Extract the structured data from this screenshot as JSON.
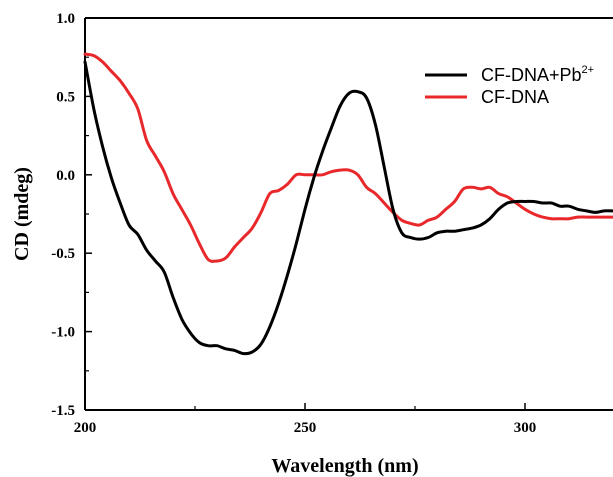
{
  "chart_data": {
    "type": "line",
    "title": "",
    "xlabel": "Wavelength (nm)",
    "ylabel": "CD (mdeg)",
    "xlim": [
      200,
      320
    ],
    "ylim": [
      -1.5,
      1.0
    ],
    "xticks": [
      200,
      250,
      300
    ],
    "xtick_labels": [
      "200",
      "250",
      "300"
    ],
    "yticks": [
      1.0,
      0.5,
      0.0,
      -0.5,
      -1.0,
      -1.5
    ],
    "ytick_labels": [
      "1.0",
      "0.5",
      "0.0",
      "-0.5",
      "-1.0",
      "-1.5"
    ],
    "grid": false,
    "legend_position": "top-right",
    "series": [
      {
        "name": "CF-DNA+Pb2+",
        "legend_base": "CF-DNA+Pb",
        "legend_sup": "2+",
        "color": "#000000",
        "x": [
          200,
          202,
          204,
          206,
          208,
          210,
          212,
          214,
          216,
          218,
          220,
          222,
          224,
          226,
          228,
          230,
          232,
          234,
          236,
          238,
          240,
          242,
          244,
          246,
          248,
          250,
          252,
          254,
          256,
          258,
          260,
          262,
          264,
          266,
          268,
          270,
          272,
          274,
          276,
          278,
          280,
          282,
          284,
          286,
          288,
          290,
          292,
          294,
          296,
          298,
          300,
          302,
          304,
          306,
          308,
          310,
          312,
          314,
          316,
          318,
          320
        ],
        "y": [
          0.72,
          0.42,
          0.18,
          -0.02,
          -0.18,
          -0.32,
          -0.38,
          -0.48,
          -0.55,
          -0.62,
          -0.78,
          -0.92,
          -1.01,
          -1.07,
          -1.09,
          -1.09,
          -1.11,
          -1.12,
          -1.14,
          -1.13,
          -1.08,
          -0.97,
          -0.82,
          -0.64,
          -0.44,
          -0.22,
          -0.02,
          0.15,
          0.3,
          0.44,
          0.52,
          0.53,
          0.49,
          0.32,
          0.05,
          -0.22,
          -0.37,
          -0.4,
          -0.41,
          -0.4,
          -0.37,
          -0.36,
          -0.36,
          -0.35,
          -0.34,
          -0.32,
          -0.28,
          -0.22,
          -0.18,
          -0.17,
          -0.17,
          -0.17,
          -0.18,
          -0.18,
          -0.2,
          -0.2,
          -0.22,
          -0.23,
          -0.24,
          -0.23,
          -0.23
        ]
      },
      {
        "name": "CF-DNA",
        "legend_base": "CF-DNA",
        "legend_sup": "",
        "color": "#e8282b",
        "x": [
          200,
          202,
          204,
          206,
          208,
          210,
          212,
          214,
          216,
          218,
          220,
          222,
          224,
          226,
          228,
          230,
          232,
          234,
          236,
          238,
          240,
          242,
          244,
          246,
          248,
          250,
          252,
          254,
          256,
          258,
          260,
          262,
          264,
          266,
          268,
          270,
          272,
          274,
          276,
          278,
          280,
          282,
          284,
          286,
          288,
          290,
          292,
          294,
          296,
          298,
          300,
          302,
          304,
          306,
          308,
          310,
          312,
          314,
          316,
          318,
          320
        ],
        "y": [
          0.77,
          0.76,
          0.72,
          0.66,
          0.6,
          0.52,
          0.42,
          0.22,
          0.12,
          0.02,
          -0.12,
          -0.22,
          -0.32,
          -0.44,
          -0.54,
          -0.55,
          -0.53,
          -0.46,
          -0.4,
          -0.34,
          -0.24,
          -0.12,
          -0.1,
          -0.06,
          0.0,
          0.0,
          0.0,
          0.0,
          0.02,
          0.03,
          0.03,
          0.0,
          -0.08,
          -0.12,
          -0.18,
          -0.24,
          -0.29,
          -0.31,
          -0.32,
          -0.29,
          -0.27,
          -0.22,
          -0.17,
          -0.09,
          -0.08,
          -0.09,
          -0.08,
          -0.12,
          -0.14,
          -0.18,
          -0.22,
          -0.25,
          -0.27,
          -0.28,
          -0.28,
          -0.28,
          -0.27,
          -0.27,
          -0.27,
          -0.27,
          -0.27
        ]
      }
    ]
  }
}
